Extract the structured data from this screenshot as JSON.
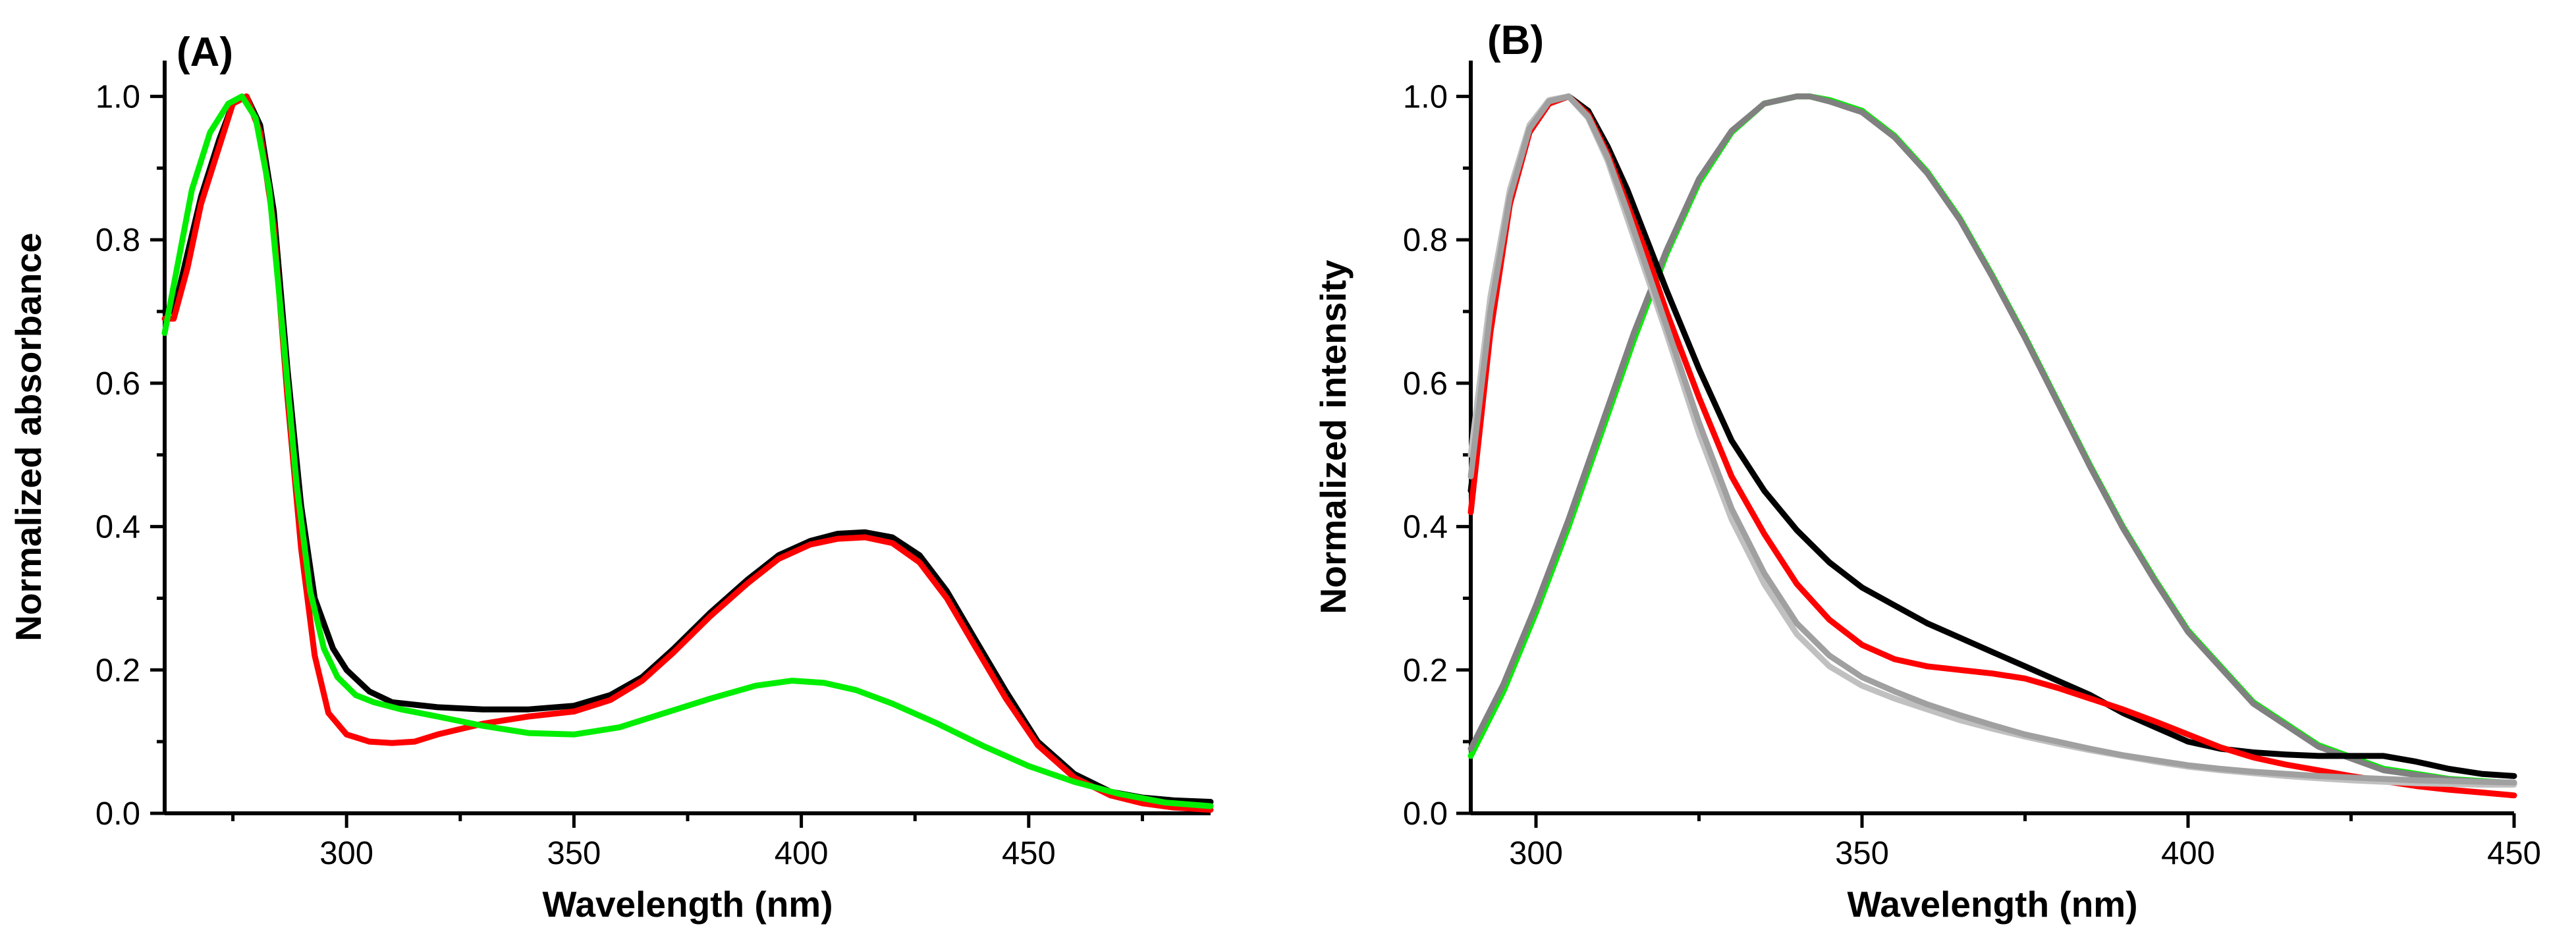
{
  "chart_data": [
    {
      "type": "line",
      "panel_label": "(A)",
      "xlabel": "Wavelength (nm)",
      "ylabel": "Normalized absorbance",
      "xlim": [
        260,
        490
      ],
      "ylim": [
        0,
        1.05
      ],
      "xticks": [
        300,
        350,
        400,
        450
      ],
      "xticklabels": [
        "300",
        "350",
        "400",
        "450"
      ],
      "yticks": [
        0,
        0.2,
        0.4,
        0.6,
        0.8,
        1.0
      ],
      "yticklabels": [
        "0.0",
        "0.2",
        "0.4",
        "0.6",
        "0.8",
        "1.0"
      ],
      "series": [
        {
          "name": "black",
          "color": "#000000",
          "x": [
            260,
            262,
            265,
            268,
            272,
            275,
            278,
            281,
            284,
            287,
            290,
            293,
            297,
            300,
            305,
            310,
            320,
            330,
            340,
            350,
            358,
            365,
            372,
            380,
            388,
            395,
            402,
            408,
            414,
            420,
            426,
            432,
            438,
            445,
            452,
            460,
            468,
            475,
            482,
            490
          ],
          "y": [
            0.7,
            0.7,
            0.78,
            0.86,
            0.94,
            0.99,
            1.0,
            0.96,
            0.84,
            0.62,
            0.43,
            0.3,
            0.23,
            0.2,
            0.17,
            0.155,
            0.148,
            0.145,
            0.145,
            0.15,
            0.165,
            0.19,
            0.23,
            0.28,
            0.325,
            0.36,
            0.38,
            0.39,
            0.392,
            0.385,
            0.36,
            0.31,
            0.245,
            0.17,
            0.1,
            0.055,
            0.03,
            0.022,
            0.018,
            0.016
          ]
        },
        {
          "name": "red",
          "color": "#ff0000",
          "x": [
            260,
            262,
            265,
            268,
            272,
            275,
            278,
            281,
            284,
            287,
            290,
            293,
            296,
            300,
            305,
            310,
            315,
            320,
            330,
            340,
            350,
            358,
            365,
            372,
            380,
            388,
            395,
            402,
            408,
            414,
            420,
            426,
            432,
            438,
            445,
            452,
            460,
            468,
            475,
            482,
            490
          ],
          "y": [
            0.69,
            0.69,
            0.76,
            0.85,
            0.93,
            0.99,
            1.0,
            0.95,
            0.82,
            0.58,
            0.37,
            0.22,
            0.14,
            0.11,
            0.1,
            0.098,
            0.1,
            0.11,
            0.125,
            0.135,
            0.142,
            0.158,
            0.185,
            0.225,
            0.275,
            0.32,
            0.355,
            0.375,
            0.383,
            0.385,
            0.377,
            0.35,
            0.3,
            0.235,
            0.16,
            0.095,
            0.05,
            0.025,
            0.014,
            0.008,
            0.005
          ]
        },
        {
          "name": "green",
          "color": "#00ee00",
          "x": [
            260,
            263,
            266,
            270,
            274,
            277,
            280,
            283,
            286,
            289,
            292,
            295,
            298,
            302,
            306,
            312,
            320,
            330,
            340,
            350,
            360,
            370,
            380,
            390,
            398,
            405,
            412,
            420,
            430,
            440,
            450,
            460,
            470,
            480,
            490
          ],
          "y": [
            0.67,
            0.77,
            0.87,
            0.95,
            0.99,
            1.0,
            0.97,
            0.87,
            0.67,
            0.46,
            0.31,
            0.23,
            0.19,
            0.165,
            0.155,
            0.145,
            0.135,
            0.122,
            0.112,
            0.11,
            0.12,
            0.14,
            0.16,
            0.178,
            0.185,
            0.182,
            0.172,
            0.153,
            0.125,
            0.094,
            0.066,
            0.044,
            0.027,
            0.015,
            0.01
          ]
        }
      ]
    },
    {
      "type": "line",
      "panel_label": "(B)",
      "xlabel": "Wavelength (nm)",
      "ylabel": "Normalized intensity",
      "xlim": [
        290,
        450
      ],
      "ylim": [
        0,
        1.05
      ],
      "xticks": [
        300,
        350,
        400,
        450
      ],
      "xticklabels": [
        "300",
        "350",
        "400",
        "450"
      ],
      "yticks": [
        0,
        0.2,
        0.4,
        0.6,
        0.8,
        1.0
      ],
      "yticklabels": [
        "0.0",
        "0.2",
        "0.4",
        "0.6",
        "0.8",
        "1.0"
      ],
      "series": [
        {
          "name": "green",
          "color": "#00ee00",
          "x": [
            290,
            295,
            300,
            305,
            310,
            315,
            320,
            325,
            330,
            335,
            340,
            342,
            345,
            350,
            355,
            360,
            365,
            370,
            375,
            380,
            385,
            390,
            395,
            400,
            410,
            420,
            430,
            440,
            450
          ],
          "y": [
            0.08,
            0.17,
            0.28,
            0.4,
            0.53,
            0.66,
            0.78,
            0.88,
            0.95,
            0.99,
            1.0,
            1.0,
            0.995,
            0.98,
            0.945,
            0.895,
            0.83,
            0.75,
            0.665,
            0.575,
            0.485,
            0.4,
            0.325,
            0.255,
            0.155,
            0.095,
            0.062,
            0.048,
            0.042
          ]
        },
        {
          "name": "dark-gray",
          "color": "#808080",
          "x": [
            290,
            295,
            300,
            305,
            310,
            315,
            320,
            325,
            330,
            335,
            340,
            342,
            345,
            350,
            355,
            360,
            365,
            370,
            375,
            380,
            385,
            390,
            395,
            400,
            410,
            420,
            430,
            440,
            450
          ],
          "y": [
            0.09,
            0.18,
            0.29,
            0.41,
            0.54,
            0.67,
            0.785,
            0.885,
            0.952,
            0.99,
            1.0,
            1.0,
            0.993,
            0.978,
            0.943,
            0.893,
            0.828,
            0.748,
            0.663,
            0.573,
            0.483,
            0.398,
            0.323,
            0.253,
            0.153,
            0.093,
            0.06,
            0.047,
            0.041
          ]
        },
        {
          "name": "black",
          "color": "#000000",
          "x": [
            290,
            293,
            296,
            299,
            302,
            305,
            308,
            311,
            314,
            317,
            320,
            325,
            330,
            335,
            340,
            345,
            350,
            355,
            360,
            365,
            370,
            375,
            380,
            385,
            390,
            395,
            400,
            405,
            410,
            415,
            420,
            425,
            430,
            435,
            440,
            445,
            450
          ],
          "y": [
            0.45,
            0.68,
            0.85,
            0.95,
            0.99,
            1.0,
            0.98,
            0.93,
            0.87,
            0.8,
            0.73,
            0.62,
            0.52,
            0.45,
            0.395,
            0.35,
            0.315,
            0.29,
            0.265,
            0.245,
            0.225,
            0.205,
            0.185,
            0.165,
            0.14,
            0.12,
            0.1,
            0.09,
            0.085,
            0.082,
            0.08,
            0.08,
            0.08,
            0.072,
            0.062,
            0.055,
            0.052
          ]
        },
        {
          "name": "red",
          "color": "#ff0000",
          "x": [
            290,
            293,
            296,
            299,
            302,
            305,
            308,
            311,
            314,
            317,
            320,
            325,
            330,
            335,
            340,
            345,
            350,
            355,
            360,
            365,
            370,
            375,
            380,
            385,
            390,
            395,
            400,
            405,
            410,
            415,
            420,
            425,
            430,
            435,
            440,
            445,
            450
          ],
          "y": [
            0.42,
            0.67,
            0.85,
            0.95,
            0.99,
            1.0,
            0.975,
            0.92,
            0.85,
            0.78,
            0.7,
            0.58,
            0.47,
            0.39,
            0.32,
            0.27,
            0.235,
            0.215,
            0.205,
            0.2,
            0.195,
            0.188,
            0.175,
            0.16,
            0.145,
            0.128,
            0.11,
            0.092,
            0.078,
            0.068,
            0.06,
            0.052,
            0.045,
            0.038,
            0.033,
            0.029,
            0.025
          ]
        },
        {
          "name": "light-gray",
          "color": "#c0c0c0",
          "x": [
            290,
            293,
            296,
            299,
            302,
            305,
            308,
            311,
            314,
            317,
            320,
            325,
            330,
            335,
            340,
            345,
            350,
            355,
            360,
            365,
            370,
            375,
            380,
            385,
            390,
            395,
            400,
            405,
            410,
            415,
            420,
            425,
            430,
            435,
            440,
            445,
            450
          ],
          "y": [
            0.5,
            0.72,
            0.87,
            0.96,
            0.995,
            1.0,
            0.97,
            0.91,
            0.83,
            0.75,
            0.67,
            0.53,
            0.41,
            0.32,
            0.25,
            0.205,
            0.178,
            0.16,
            0.145,
            0.13,
            0.118,
            0.107,
            0.097,
            0.088,
            0.08,
            0.072,
            0.065,
            0.06,
            0.056,
            0.052,
            0.049,
            0.046,
            0.044,
            0.042,
            0.041,
            0.04,
            0.04
          ]
        },
        {
          "name": "mid-gray",
          "color": "#a0a0a0",
          "x": [
            290,
            293,
            296,
            299,
            302,
            305,
            308,
            311,
            314,
            317,
            320,
            325,
            330,
            335,
            340,
            345,
            350,
            355,
            360,
            365,
            370,
            375,
            380,
            385,
            390,
            395,
            400,
            405,
            410,
            415,
            420,
            425,
            430,
            435,
            440,
            445,
            450
          ],
          "y": [
            0.47,
            0.7,
            0.86,
            0.955,
            0.993,
            1.0,
            0.972,
            0.915,
            0.84,
            0.76,
            0.68,
            0.545,
            0.425,
            0.335,
            0.265,
            0.22,
            0.19,
            0.17,
            0.152,
            0.137,
            0.123,
            0.11,
            0.1,
            0.09,
            0.081,
            0.074,
            0.067,
            0.062,
            0.058,
            0.055,
            0.052,
            0.05,
            0.048,
            0.046,
            0.045,
            0.044,
            0.043
          ]
        }
      ]
    }
  ]
}
